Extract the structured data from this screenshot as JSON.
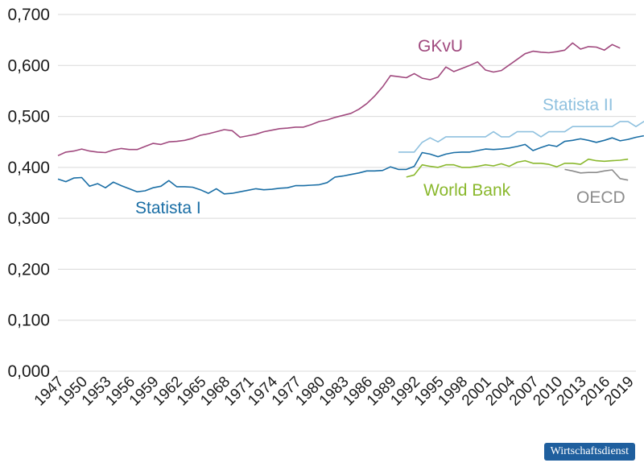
{
  "chart_data": {
    "type": "line",
    "title": "",
    "xlabel": "",
    "ylabel": "",
    "xlim": [
      1947,
      2020
    ],
    "ylim": [
      0,
      0.7
    ],
    "grid": true,
    "y_ticks": [
      "0,000",
      "0,100",
      "0,200",
      "0,300",
      "0,400",
      "0,500",
      "0,600",
      "0,700"
    ],
    "x_ticks": [
      "1947",
      "1950",
      "1953",
      "1956",
      "1959",
      "1962",
      "1965",
      "1968",
      "1971",
      "1974",
      "1977",
      "1980",
      "1983",
      "1986",
      "1989",
      "1992",
      "1995",
      "1998",
      "2001",
      "2004",
      "2007",
      "2010",
      "2013",
      "2016",
      "2019"
    ],
    "series": [
      {
        "name": "GKvU",
        "color": "#a0497e",
        "x_start": 1947,
        "values": [
          0.423,
          0.43,
          0.432,
          0.436,
          0.432,
          0.43,
          0.429,
          0.434,
          0.437,
          0.435,
          0.435,
          0.441,
          0.447,
          0.445,
          0.45,
          0.451,
          0.453,
          0.457,
          0.463,
          0.466,
          0.47,
          0.474,
          0.472,
          0.459,
          0.462,
          0.465,
          0.47,
          0.473,
          0.476,
          0.477,
          0.479,
          0.479,
          0.484,
          0.49,
          0.493,
          0.498,
          0.502,
          0.506,
          0.514,
          0.525,
          0.54,
          0.558,
          0.58,
          0.578,
          0.576,
          0.584,
          0.575,
          0.572,
          0.577,
          0.597,
          0.588,
          0.594,
          0.6,
          0.607,
          0.591,
          0.587,
          0.59,
          0.601,
          0.612,
          0.623,
          0.628,
          0.626,
          0.625,
          0.627,
          0.63,
          0.644,
          0.632,
          0.637,
          0.636,
          0.63,
          0.641,
          0.634
        ]
      },
      {
        "name": "Statista II",
        "color": "#8fc1df",
        "x_start": 1990,
        "values": [
          0.43,
          0.43,
          0.43,
          0.449,
          0.458,
          0.45,
          0.46,
          0.46,
          0.46,
          0.46,
          0.46,
          0.46,
          0.47,
          0.46,
          0.46,
          0.47,
          0.47,
          0.47,
          0.46,
          0.47,
          0.47,
          0.47,
          0.48,
          0.48,
          0.48,
          0.48,
          0.48,
          0.48,
          0.49,
          0.49,
          0.48,
          0.49,
          0.49
        ]
      },
      {
        "name": "Statista I",
        "color": "#1a6ea5",
        "x_start": 1947,
        "values": [
          0.377,
          0.372,
          0.379,
          0.38,
          0.363,
          0.368,
          0.36,
          0.371,
          0.364,
          0.358,
          0.352,
          0.354,
          0.36,
          0.363,
          0.374,
          0.362,
          0.362,
          0.361,
          0.356,
          0.349,
          0.358,
          0.348,
          0.349,
          0.352,
          0.355,
          0.358,
          0.356,
          0.357,
          0.359,
          0.36,
          0.364,
          0.364,
          0.365,
          0.366,
          0.37,
          0.381,
          0.383,
          0.386,
          0.389,
          0.393,
          0.393,
          0.394,
          0.401,
          0.396,
          0.396,
          0.402,
          0.429,
          0.426,
          0.421,
          0.426,
          0.429,
          0.43,
          0.43,
          0.433,
          0.436,
          0.435,
          0.436,
          0.438,
          0.441,
          0.445,
          0.433,
          0.439,
          0.444,
          0.441,
          0.451,
          0.453,
          0.456,
          0.453,
          0.449,
          0.453,
          0.458,
          0.452,
          0.455,
          0.459,
          0.462
        ]
      },
      {
        "name": "World Bank",
        "color": "#8ab82d",
        "x_start": 1991,
        "values": [
          0.381,
          0.385,
          0.405,
          0.402,
          0.4,
          0.405,
          0.405,
          0.4,
          0.4,
          0.402,
          0.405,
          0.403,
          0.407,
          0.402,
          0.41,
          0.413,
          0.408,
          0.408,
          0.406,
          0.401,
          0.408,
          0.408,
          0.406,
          0.416,
          0.413,
          0.412,
          0.413,
          0.414,
          0.416
        ]
      },
      {
        "name": "OECD",
        "color": "#8c8c8c",
        "x_start": 2011,
        "values": [
          0.396,
          0.393,
          0.389,
          0.39,
          0.39,
          0.393,
          0.395,
          0.378,
          0.375
        ]
      }
    ],
    "annotations": [
      {
        "text": "GKvU",
        "series": "GKvU"
      },
      {
        "text": "Statista II",
        "series": "Statista II"
      },
      {
        "text": "Statista I",
        "series": "Statista I"
      },
      {
        "text": "World Bank",
        "series": "World Bank"
      },
      {
        "text": "OECD",
        "series": "OECD"
      }
    ]
  },
  "source_badge": "Wirtschaftsdienst"
}
